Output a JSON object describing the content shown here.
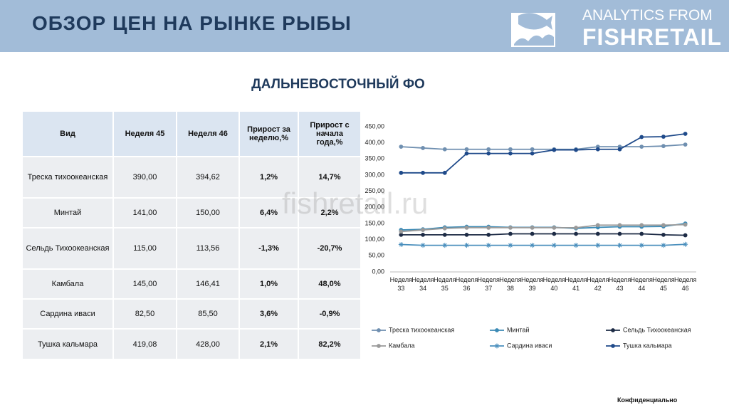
{
  "header": {
    "title": "ОБЗОР ЦЕН НА РЫНКЕ РЫБЫ",
    "logo_top": "ANALYTICS FROM",
    "logo_bottom": "FISHRETAIL"
  },
  "section_title": "ДАЛЬНЕВОСТОЧНЫЙ ФО",
  "table": {
    "header": [
      "Вид",
      "Неделя 45",
      "Неделя 46",
      "Прирост за неделю,%",
      "Прирост с начала года,%"
    ],
    "rows": [
      [
        "Треска тихоокеанская",
        "390,00",
        "394,62",
        "1,2%",
        "14,7%"
      ],
      [
        "Минтай",
        "141,00",
        "150,00",
        "6,4%",
        "2,2%"
      ],
      [
        "Сельдь Тихоокеанская",
        "115,00",
        "113,56",
        "-1,3%",
        "-20,7%"
      ],
      [
        "Камбала",
        "145,00",
        "146,41",
        "1,0%",
        "48,0%"
      ],
      [
        "Сардина иваси",
        "82,50",
        "85,50",
        "3,6%",
        "-0,9%"
      ],
      [
        "Тушка кальмара",
        "419,08",
        "428,00",
        "2,1%",
        "82,2%"
      ]
    ]
  },
  "watermark": "fishretail.ru",
  "footer": "Конфиденциально",
  "chart_data": {
    "type": "line",
    "categories": [
      "Неделя 33",
      "Неделя 34",
      "Неделя 35",
      "Неделя 36",
      "Неделя 37",
      "Неделя 38",
      "Неделя 39",
      "Неделя 40",
      "Неделя 41",
      "Неделя 42",
      "Неделя 43",
      "Неделя 44",
      "Неделя 45",
      "Неделя 46"
    ],
    "ylim": [
      0,
      450
    ],
    "yticks": [
      {
        "value": 0,
        "label": "0,00"
      },
      {
        "value": 50,
        "label": "50,00"
      },
      {
        "value": 100,
        "label": "100,00"
      },
      {
        "value": 150,
        "label": "150,00"
      },
      {
        "value": 200,
        "label": "200,00"
      },
      {
        "value": 250,
        "label": "250,00"
      },
      {
        "value": 300,
        "label": "300,00"
      },
      {
        "value": 350,
        "label": "350,00"
      },
      {
        "value": 400,
        "label": "400,00"
      },
      {
        "value": 450,
        "label": "450,00"
      }
    ],
    "grid": false,
    "legend": "bottom",
    "series": [
      {
        "name": "Треска тихоокеанская",
        "color": "#6f8fb0",
        "marker": "circle",
        "values": [
          388,
          384,
          380,
          380,
          380,
          380,
          380,
          380,
          380,
          388,
          388,
          388,
          390,
          394.62
        ]
      },
      {
        "name": "Минтай",
        "color": "#3b8ab5",
        "marker": "circle",
        "values": [
          130,
          132,
          138,
          140,
          140,
          138,
          138,
          138,
          135,
          138,
          140,
          140,
          141,
          150
        ]
      },
      {
        "name": "Сельдь Тихоокеанская",
        "color": "#1d2b45",
        "marker": "circle",
        "values": [
          115,
          115,
          115,
          115,
          115,
          118,
          118,
          118,
          118,
          118,
          118,
          118,
          115,
          113.56
        ]
      },
      {
        "name": "Камбала",
        "color": "#9a9a9a",
        "marker": "circle",
        "values": [
          125,
          130,
          135,
          137,
          137,
          137,
          137,
          137,
          137,
          145,
          145,
          145,
          145,
          146.41
        ]
      },
      {
        "name": "Сардина иваси",
        "color": "#4a8fbd",
        "marker": "star",
        "values": [
          85,
          82.5,
          82.5,
          82.5,
          82.5,
          82.5,
          82.5,
          82.5,
          82.5,
          82.5,
          82.5,
          82.5,
          82.5,
          85.5
        ]
      },
      {
        "name": "Тушка кальмара",
        "color": "#1f4a8a",
        "marker": "circle",
        "values": [
          307,
          307,
          307,
          367,
          367,
          367,
          367,
          378,
          378,
          380,
          380,
          418,
          419.08,
          428
        ]
      }
    ]
  }
}
